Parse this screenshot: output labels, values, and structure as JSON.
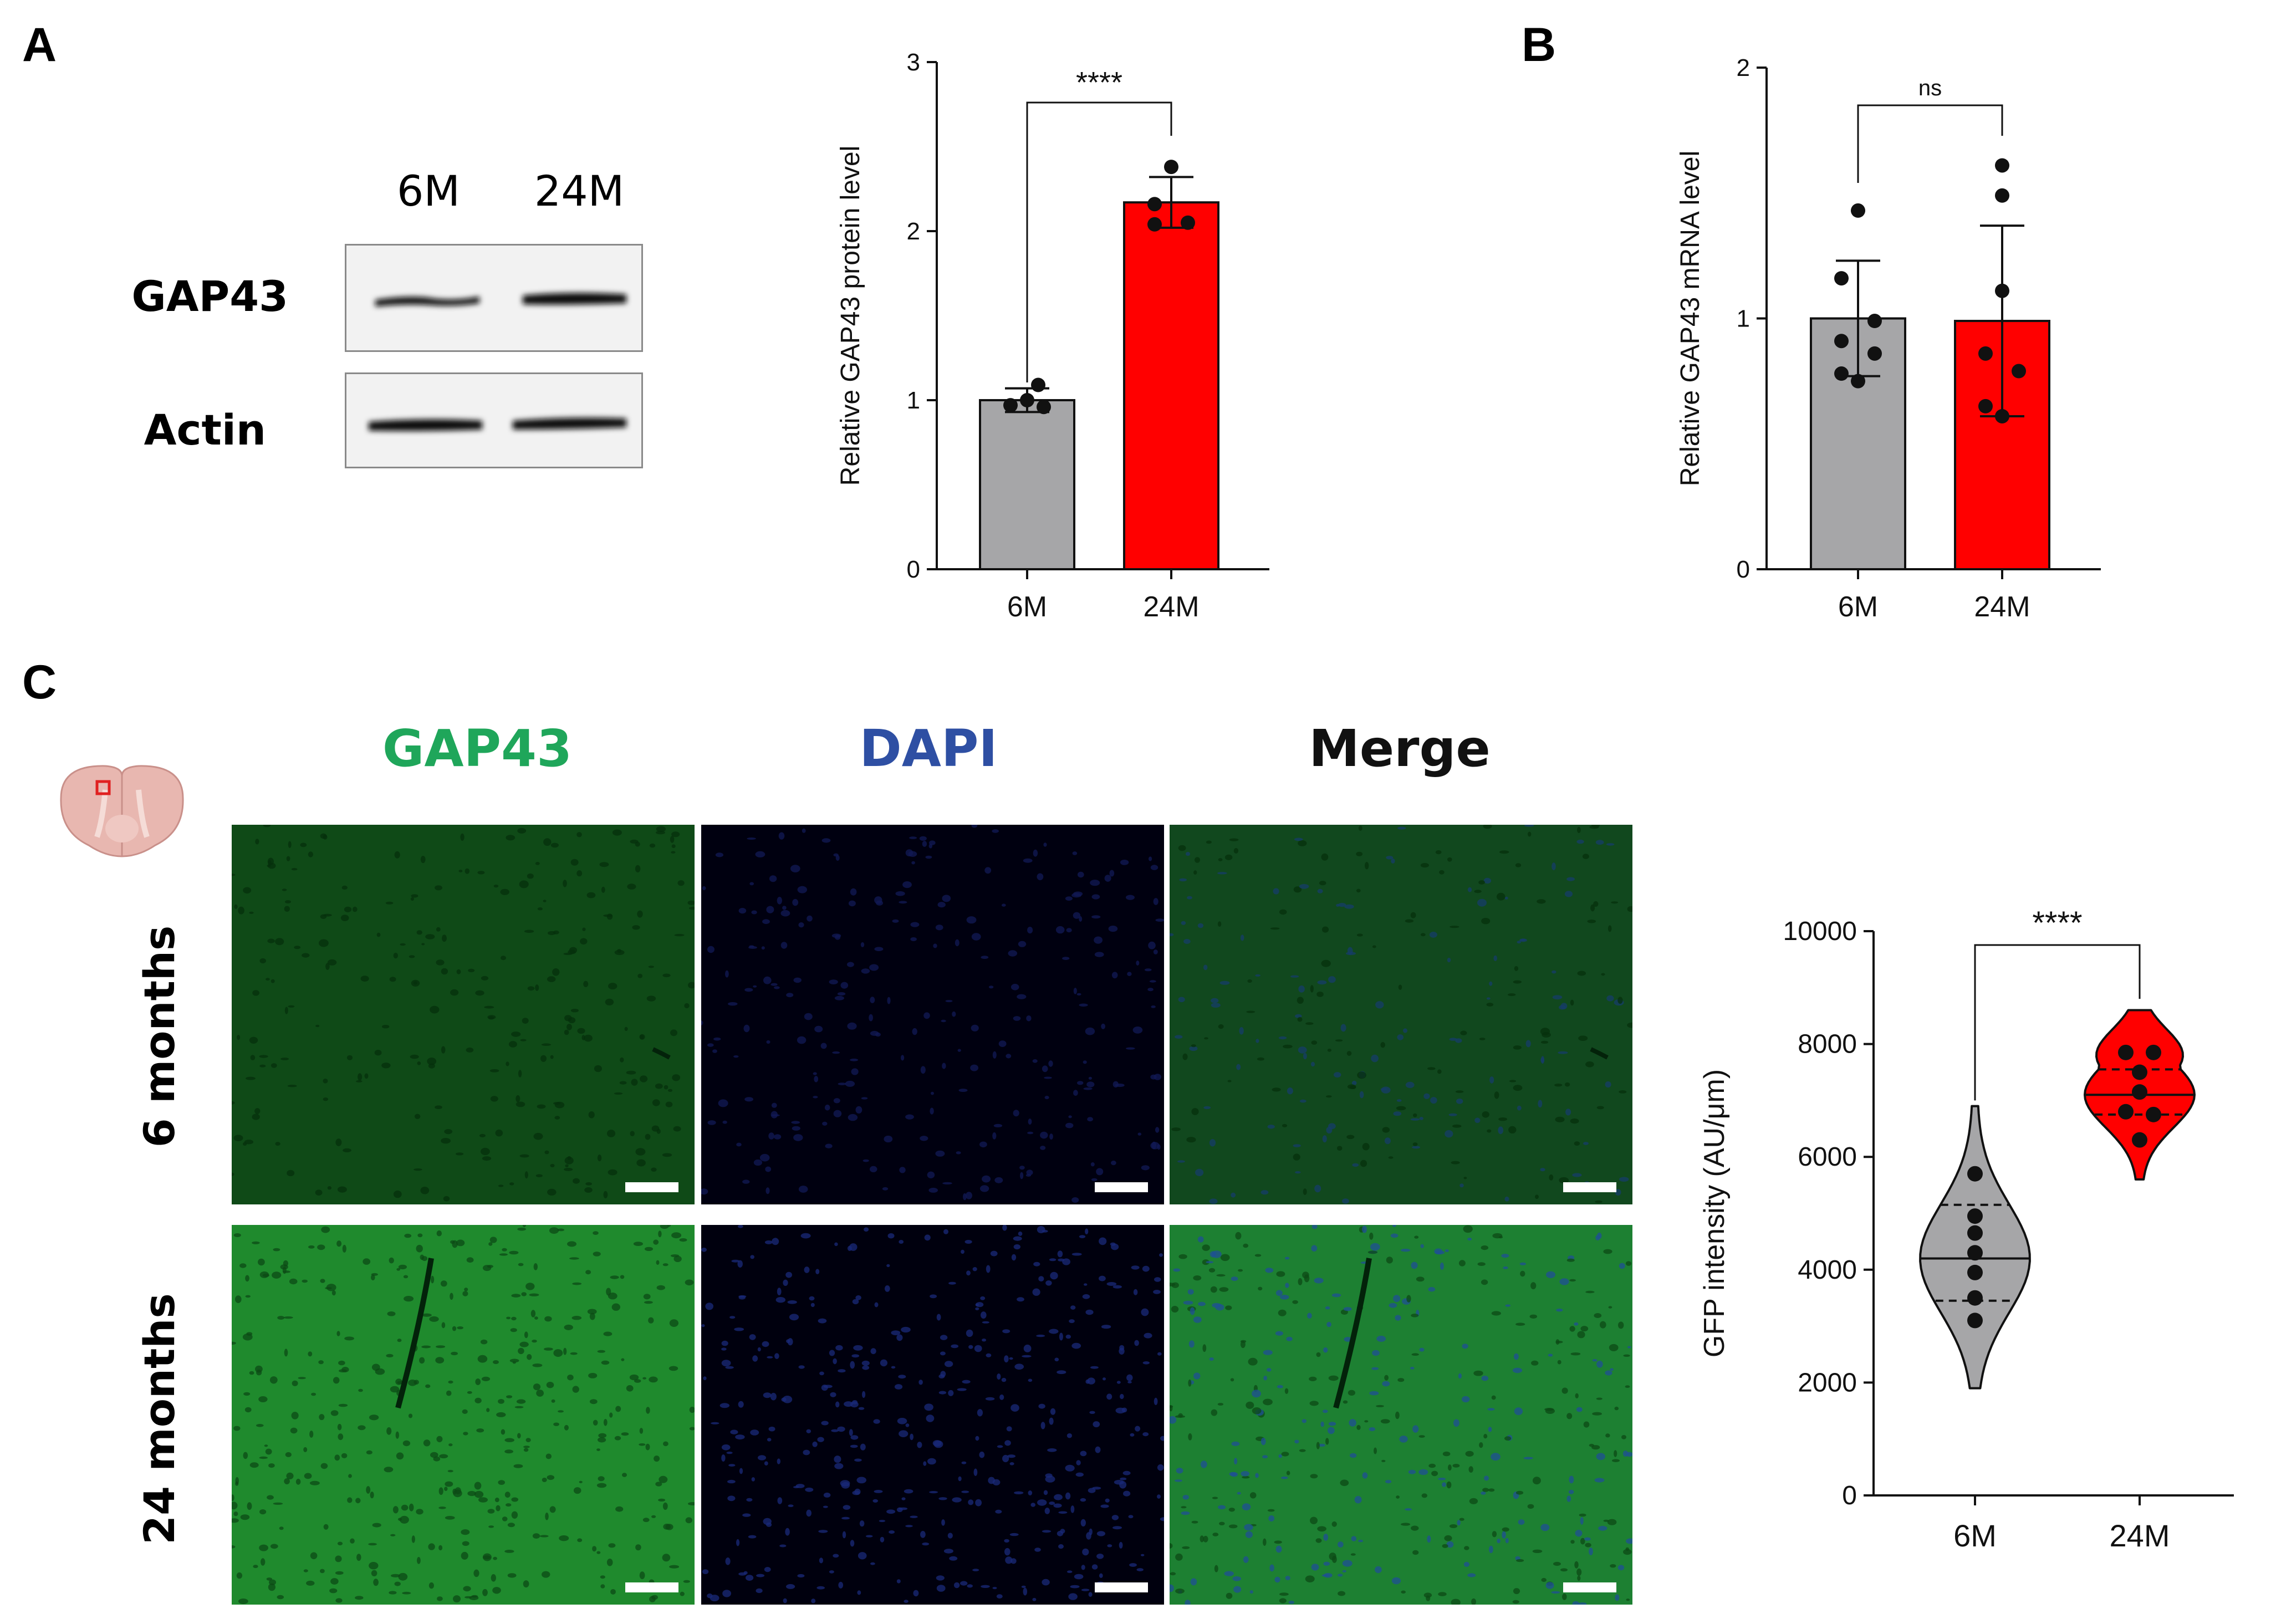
{
  "panels": {
    "a": "A",
    "b": "B",
    "c": "C"
  },
  "western_blot": {
    "lanes": [
      "6M",
      "24M"
    ],
    "proteins": [
      "GAP43",
      "Actin"
    ]
  },
  "microscopy": {
    "columns": [
      {
        "label": "GAP43",
        "color": "#1fa65a"
      },
      {
        "label": "DAPI",
        "color": "#2e4fa3"
      },
      {
        "label": "Merge",
        "color": "#111111"
      }
    ],
    "rows": [
      "6 months",
      "24 months"
    ]
  },
  "colors": {
    "gray_bar": "#a6a6a8",
    "red_bar": "#ff0000"
  },
  "chart_data": [
    {
      "type": "bar",
      "categories": [
        "6M",
        "24M"
      ],
      "values": [
        1.0,
        2.17
      ],
      "errors": [
        0.07,
        0.15
      ],
      "points": [
        [
          1.09,
          1.0,
          0.97,
          0.96
        ],
        [
          2.38,
          2.16,
          2.05,
          2.04
        ]
      ],
      "ylabel": "Relative GAP43 protein level",
      "ylim": [
        0,
        3
      ],
      "yticks": [
        "0",
        "1",
        "2",
        "3"
      ],
      "significance": "****",
      "colors": [
        "#a6a6a8",
        "#ff0000"
      ]
    },
    {
      "type": "bar",
      "categories": [
        "6M",
        "24M"
      ],
      "values": [
        1.0,
        0.99
      ],
      "errors": [
        0.23,
        0.38
      ],
      "points": [
        [
          1.43,
          1.16,
          0.99,
          0.91,
          0.86,
          0.78,
          0.75
        ],
        [
          1.61,
          1.49,
          1.11,
          0.86,
          0.79,
          0.65,
          0.61
        ]
      ],
      "ylabel": "Relative GAP43 mRNA level",
      "ylim": [
        0,
        2
      ],
      "yticks": [
        "0",
        "1",
        "2"
      ],
      "significance": "ns",
      "colors": [
        "#a6a6a8",
        "#ff0000"
      ]
    },
    {
      "type": "violin",
      "categories": [
        "6M",
        "24M"
      ],
      "medians": [
        4200,
        7100
      ],
      "quartiles": [
        [
          3450,
          5150
        ],
        [
          6750,
          7550
        ]
      ],
      "ranges": [
        [
          1900,
          6900
        ],
        [
          5600,
          8600
        ]
      ],
      "points": [
        [
          5700,
          4950,
          4650,
          4300,
          3950,
          3500,
          3100
        ],
        [
          7850,
          7850,
          7500,
          7150,
          6800,
          6750,
          6300
        ]
      ],
      "ylabel": "GFP intensity (AU/μm)",
      "ylim": [
        0,
        10000
      ],
      "yticks": [
        "0",
        "2000",
        "4000",
        "6000",
        "8000",
        "10000"
      ],
      "significance": "****",
      "colors": [
        "#a6a6a8",
        "#ff0000"
      ]
    }
  ]
}
